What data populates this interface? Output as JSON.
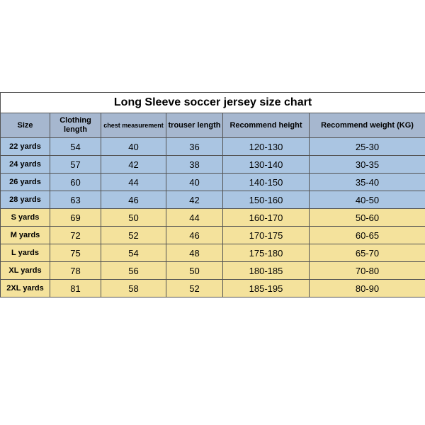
{
  "title": "Long Sleeve soccer jersey size chart",
  "columns": [
    {
      "label": "Size"
    },
    {
      "label": "Clothing length"
    },
    {
      "label": "chest measurement",
      "small": true
    },
    {
      "label": "trouser length"
    },
    {
      "label": "Recommend height"
    },
    {
      "label": "Recommend weight (KG)"
    }
  ],
  "groups": [
    {
      "bg": "#aac5e2",
      "rows": [
        {
          "label": "22 yards",
          "cells": [
            "54",
            "40",
            "36",
            "120-130",
            "25-30"
          ]
        },
        {
          "label": "24 yards",
          "cells": [
            "57",
            "42",
            "38",
            "130-140",
            "30-35"
          ]
        },
        {
          "label": "26 yards",
          "cells": [
            "60",
            "44",
            "40",
            "140-150",
            "35-40"
          ]
        },
        {
          "label": "28 yards",
          "cells": [
            "63",
            "46",
            "42",
            "150-160",
            "40-50"
          ]
        }
      ]
    },
    {
      "bg": "#f4e29c",
      "rows": [
        {
          "label": "S yards",
          "cells": [
            "69",
            "50",
            "44",
            "160-170",
            "50-60"
          ]
        },
        {
          "label": "M yards",
          "cells": [
            "72",
            "52",
            "46",
            "170-175",
            "60-65"
          ]
        },
        {
          "label": "L yards",
          "cells": [
            "75",
            "54",
            "48",
            "175-180",
            "65-70"
          ]
        },
        {
          "label": "XL yards",
          "cells": [
            "78",
            "56",
            "50",
            "180-185",
            "70-80"
          ]
        },
        {
          "label": "2XL yards",
          "cells": [
            "81",
            "58",
            "52",
            "185-195",
            "80-90"
          ]
        }
      ]
    }
  ]
}
